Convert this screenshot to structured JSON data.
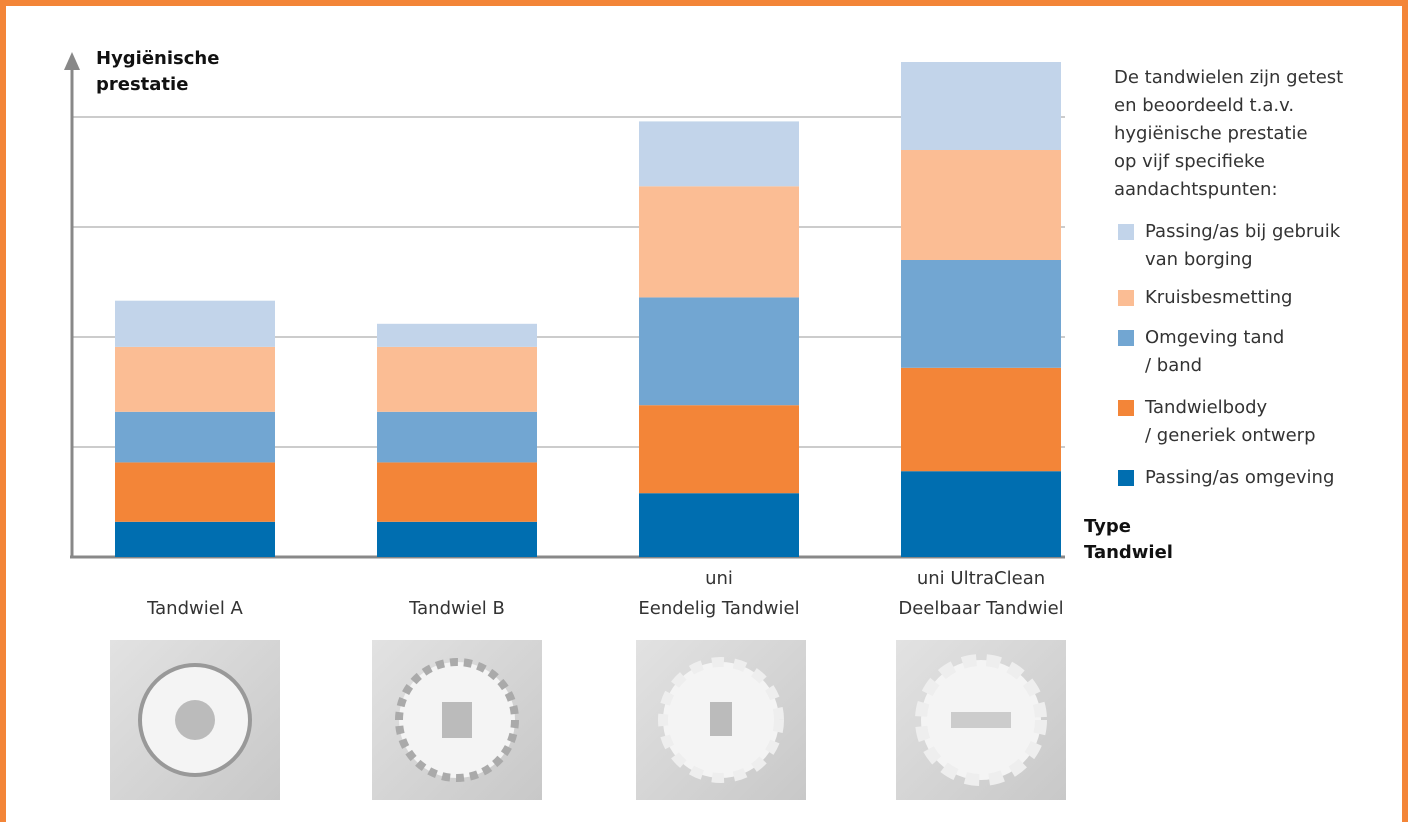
{
  "chart_data": {
    "type": "stacked_bar",
    "y_label": "Hygiënische\nprestatie",
    "x_label": "Type\nTandwiel",
    "description": "De tandwielen zijn getest\nen beoordeeld t.a.v.\nhygiënische prestatie\nop vijf specifieke\naandachtspunten:",
    "categories": [
      "Tandwiel A",
      "Tandwiel B",
      "uni\nEendelig Tandwiel",
      "uni UltraClean\nDeelbaar Tandwiel"
    ],
    "series": [
      {
        "name": "Passing/as omgeving",
        "color": "#006eb0",
        "values": [
          0.32,
          0.32,
          0.58,
          0.78
        ]
      },
      {
        "name": "Tandwielbody\n/ generiek ontwerp",
        "color": "#f38538",
        "values": [
          0.54,
          0.54,
          0.8,
          0.94
        ]
      },
      {
        "name": "Omgeving tand\n/ band",
        "color": "#72a6d2",
        "values": [
          0.46,
          0.46,
          0.98,
          0.98
        ]
      },
      {
        "name": "Kruisbesmetting",
        "color": "#fbbd94",
        "values": [
          0.59,
          0.59,
          1.01,
          1.0
        ]
      },
      {
        "name": "Passing/as bij gebruik\nvan borging",
        "color": "#c2d4ea",
        "values": [
          0.42,
          0.21,
          0.59,
          0.8
        ]
      }
    ],
    "ylim": [
      0,
      4.5
    ],
    "gridlines": [
      1,
      2,
      3,
      4
    ]
  }
}
